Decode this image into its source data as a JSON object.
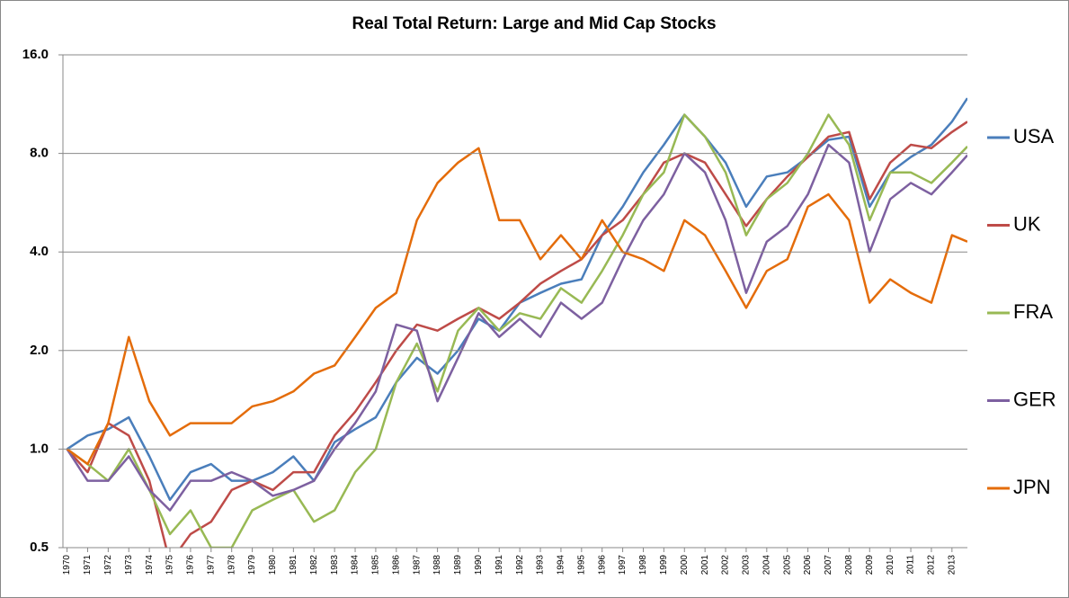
{
  "chart_data": {
    "type": "line",
    "title": "Real Total Return: Large and Mid Cap Stocks",
    "x": [
      1970,
      1971,
      1972,
      1973,
      1974,
      1975,
      1976,
      1977,
      1978,
      1979,
      1980,
      1981,
      1982,
      1983,
      1984,
      1985,
      1986,
      1987,
      1988,
      1989,
      1990,
      1991,
      1992,
      1993,
      1994,
      1995,
      1996,
      1997,
      1998,
      1999,
      2000,
      2001,
      2002,
      2003,
      2004,
      2005,
      2006,
      2007,
      2008,
      2009,
      2010,
      2011,
      2012,
      2013,
      2013.75
    ],
    "series": [
      {
        "name": "USA",
        "color": "#4a7ebb",
        "values": [
          1.0,
          1.1,
          1.15,
          1.25,
          0.95,
          0.7,
          0.85,
          0.9,
          0.8,
          0.8,
          0.85,
          0.95,
          0.8,
          1.05,
          1.15,
          1.25,
          1.6,
          1.9,
          1.7,
          2.0,
          2.5,
          2.3,
          2.8,
          3.0,
          3.2,
          3.3,
          4.5,
          5.5,
          7.0,
          8.5,
          10.5,
          9.0,
          7.5,
          5.5,
          6.8,
          7.0,
          7.8,
          8.8,
          9.0,
          5.5,
          7.0,
          7.8,
          8.5,
          10.0,
          11.8
        ]
      },
      {
        "name": "UK",
        "color": "#be4b48",
        "values": [
          1.0,
          0.85,
          1.2,
          1.1,
          0.8,
          0.45,
          0.55,
          0.6,
          0.75,
          0.8,
          0.75,
          0.85,
          0.85,
          1.1,
          1.3,
          1.6,
          2.0,
          2.4,
          2.3,
          2.5,
          2.7,
          2.5,
          2.8,
          3.2,
          3.5,
          3.8,
          4.5,
          5.0,
          6.0,
          7.5,
          8.0,
          7.5,
          6.0,
          4.8,
          5.8,
          6.8,
          7.8,
          9.0,
          9.3,
          5.8,
          7.5,
          8.5,
          8.3,
          9.3,
          10.0
        ]
      },
      {
        "name": "FRA",
        "color": "#98b954",
        "values": [
          1.0,
          0.9,
          0.8,
          1.0,
          0.75,
          0.55,
          0.65,
          0.5,
          0.5,
          0.65,
          0.7,
          0.75,
          0.6,
          0.65,
          0.85,
          1.0,
          1.6,
          2.1,
          1.5,
          2.3,
          2.7,
          2.3,
          2.6,
          2.5,
          3.1,
          2.8,
          3.5,
          4.5,
          6.0,
          7.0,
          10.5,
          9.0,
          7.0,
          4.5,
          5.8,
          6.5,
          8.0,
          10.5,
          8.5,
          5.0,
          7.0,
          7.0,
          6.5,
          7.5,
          8.4
        ]
      },
      {
        "name": "GER",
        "color": "#7d60a0",
        "values": [
          1.0,
          0.8,
          0.8,
          0.95,
          0.75,
          0.65,
          0.8,
          0.8,
          0.85,
          0.8,
          0.72,
          0.75,
          0.8,
          1.0,
          1.2,
          1.5,
          2.4,
          2.3,
          1.4,
          1.9,
          2.6,
          2.2,
          2.5,
          2.2,
          2.8,
          2.5,
          2.8,
          3.8,
          5.0,
          6.0,
          8.0,
          7.0,
          5.0,
          3.0,
          4.3,
          4.8,
          6.0,
          8.5,
          7.5,
          4.0,
          5.8,
          6.5,
          6.0,
          7.0,
          7.9
        ]
      },
      {
        "name": "JPN",
        "color": "#e46c0a",
        "values": [
          1.0,
          0.9,
          1.2,
          2.2,
          1.4,
          1.1,
          1.2,
          1.2,
          1.2,
          1.35,
          1.4,
          1.5,
          1.7,
          1.8,
          2.2,
          2.7,
          3.0,
          5.0,
          6.5,
          7.5,
          8.3,
          5.0,
          5.0,
          3.8,
          4.5,
          3.8,
          5.0,
          4.0,
          3.8,
          3.5,
          5.0,
          4.5,
          3.5,
          2.7,
          3.5,
          3.8,
          5.5,
          6.0,
          5.0,
          2.8,
          3.3,
          3.0,
          2.8,
          4.5,
          4.3
        ]
      }
    ],
    "xlim": [
      1969.8,
      2013.75
    ],
    "xticks": [
      1970,
      1971,
      1972,
      1973,
      1974,
      1975,
      1976,
      1977,
      1978,
      1979,
      1980,
      1981,
      1982,
      1983,
      1984,
      1985,
      1986,
      1987,
      1988,
      1989,
      1990,
      1991,
      1992,
      1993,
      1994,
      1995,
      1996,
      1997,
      1998,
      1999,
      2000,
      2001,
      2002,
      2003,
      2004,
      2005,
      2006,
      2007,
      2008,
      2009,
      2010,
      2011,
      2012,
      2013
    ],
    "ylim": [
      0.5,
      16
    ],
    "yticks": [
      0.5,
      {
        "value": 1,
        "label": "1.0"
      },
      {
        "value": 2,
        "label": "2.0"
      },
      {
        "value": 4,
        "label": "4.0"
      },
      {
        "value": 8,
        "label": "8.0"
      },
      {
        "value": 16,
        "label": "16.0"
      }
    ],
    "log_scale": true,
    "grid": true,
    "legend": "right"
  }
}
